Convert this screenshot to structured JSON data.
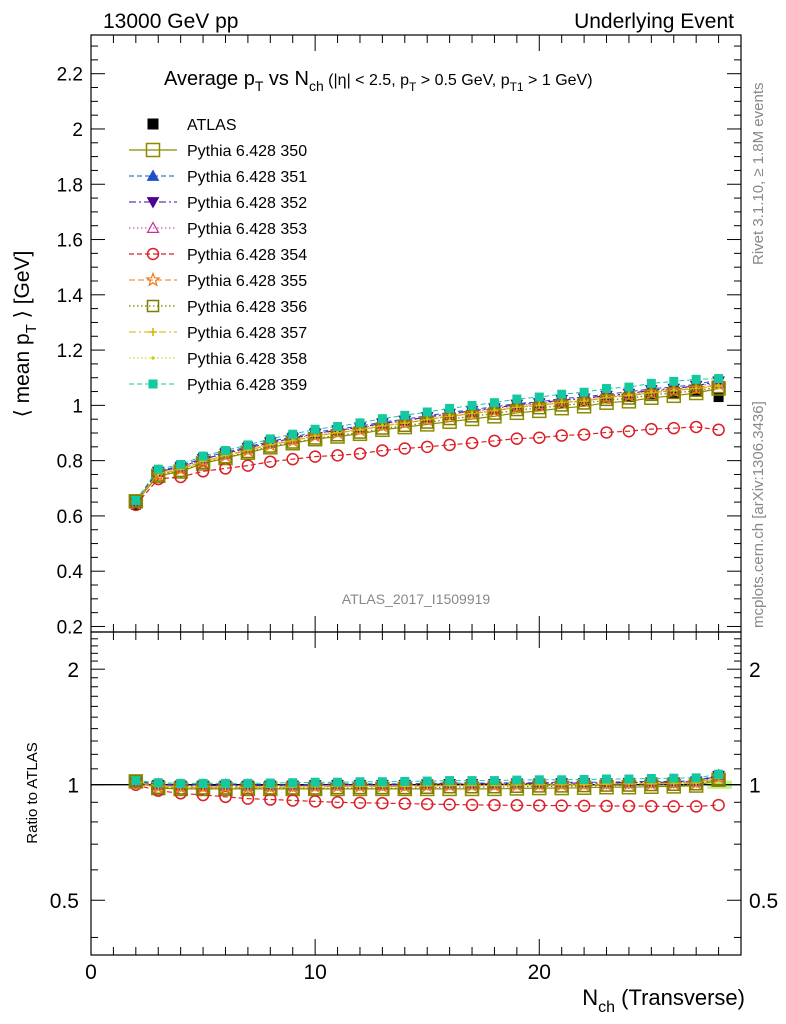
{
  "header": {
    "left": "13000 GeV pp",
    "right": "Underlying Event"
  },
  "side_labels": {
    "rivet": "Rivet 3.1.10, ≥ 1.8M events",
    "mcplots": "mcplots.cern.ch [arXiv:1306.3436]"
  },
  "watermark": "ATLAS_2017_I1509919",
  "colors": {
    "ATLAS": "#000000",
    "s350": "#8b8b00",
    "s351": "#1e50c8",
    "s352": "#4b0096",
    "s353": "#c83296",
    "s354": "#dc1e28",
    "s355": "#f07814",
    "s356": "#7d7d00",
    "s357": "#d2b400",
    "s358": "#c8c800",
    "s359": "#14c8a0"
  },
  "chart_data": {
    "type": "line",
    "title": {
      "main": "Average p",
      "sub_T": "T",
      "vs": " vs N",
      "sub_ch": "ch",
      "cuts": [
        " (|η| < 2.5, p",
        "T",
        " > 0.5 GeV, p",
        "T1",
        " > 1 GeV)"
      ]
    },
    "ylabel": {
      "main": "⟨ mean p",
      "sub": "T",
      "end": " ⟩ [GeV]"
    },
    "ratio_ylabel": "Ratio to ATLAS",
    "xlabel": {
      "main": "N",
      "sub": "ch",
      "end": " (Transverse)"
    },
    "xlim": [
      0,
      29
    ],
    "ylim": [
      0.18,
      2.34
    ],
    "ratio_ylim": [
      0.36,
      2.5
    ],
    "ratio_scale": "log",
    "x_ticks": [
      "0",
      "10",
      "20"
    ],
    "y_ticks": [
      "0.2",
      "0.4",
      "0.6",
      "0.8",
      "1",
      "1.2",
      "1.4",
      "1.6",
      "1.8",
      "2",
      "2.2"
    ],
    "ratio_ticks": [
      "0.5",
      "1",
      "2"
    ],
    "legend_position": "top-left",
    "x": [
      2,
      3,
      4,
      5,
      6,
      7,
      8,
      9,
      10,
      11,
      12,
      13,
      14,
      15,
      16,
      17,
      18,
      19,
      20,
      21,
      22,
      23,
      24,
      25,
      26,
      27,
      28
    ],
    "data": {
      "name": "ATLAS",
      "y": [
        0.64,
        0.76,
        0.78,
        0.81,
        0.83,
        0.85,
        0.87,
        0.885,
        0.9,
        0.91,
        0.92,
        0.935,
        0.945,
        0.955,
        0.965,
        0.975,
        0.985,
        0.995,
        1.0,
        1.01,
        1.015,
        1.025,
        1.03,
        1.04,
        1.045,
        1.05,
        1.03
      ]
    },
    "series": [
      {
        "name": "Pythia 6.428 350",
        "ratio": [
          1.02,
          0.98,
          0.975,
          0.975,
          0.975,
          0.975,
          0.975,
          0.975,
          0.975,
          0.975,
          0.975,
          0.975,
          0.975,
          0.975,
          0.975,
          0.975,
          0.975,
          0.978,
          0.98,
          0.98,
          0.982,
          0.985,
          0.985,
          0.988,
          0.99,
          0.995,
          1.03
        ]
      },
      {
        "name": "Pythia 6.428 351",
        "ratio": [
          1.02,
          1.005,
          1.0,
          1.0,
          1.0,
          1.0,
          1.0,
          1.0,
          1.003,
          1.005,
          1.005,
          1.005,
          1.005,
          1.008,
          1.01,
          1.01,
          1.01,
          1.012,
          1.012,
          1.015,
          1.015,
          1.015,
          1.018,
          1.02,
          1.02,
          1.025,
          1.06
        ]
      },
      {
        "name": "Pythia 6.428 352",
        "ratio": [
          1.015,
          1.0,
          0.995,
          0.995,
          0.995,
          0.995,
          0.995,
          0.995,
          0.998,
          1.0,
          1.0,
          1.0,
          1.0,
          1.003,
          1.005,
          1.005,
          1.005,
          1.008,
          1.008,
          1.01,
          1.01,
          1.01,
          1.012,
          1.015,
          1.015,
          1.02,
          1.055
        ]
      },
      {
        "name": "Pythia 6.428 353",
        "ratio": [
          1.015,
          0.998,
          0.993,
          0.993,
          0.993,
          0.993,
          0.993,
          0.993,
          0.995,
          0.998,
          0.998,
          0.998,
          0.998,
          1.0,
          1.003,
          1.003,
          1.003,
          1.005,
          1.005,
          1.008,
          1.008,
          1.008,
          1.01,
          1.012,
          1.012,
          1.018,
          1.05
        ]
      },
      {
        "name": "Pythia 6.428 354",
        "ratio": [
          1.0,
          0.965,
          0.95,
          0.94,
          0.93,
          0.92,
          0.915,
          0.91,
          0.905,
          0.9,
          0.897,
          0.895,
          0.893,
          0.89,
          0.888,
          0.886,
          0.885,
          0.884,
          0.883,
          0.882,
          0.881,
          0.88,
          0.88,
          0.879,
          0.878,
          0.878,
          0.885
        ]
      },
      {
        "name": "Pythia 6.428 355",
        "ratio": [
          1.01,
          0.985,
          0.985,
          0.985,
          0.985,
          0.985,
          0.985,
          0.985,
          0.988,
          0.99,
          0.99,
          0.99,
          0.99,
          0.993,
          0.995,
          0.995,
          0.995,
          0.998,
          1.0,
          1.0,
          1.0,
          1.003,
          1.005,
          1.005,
          1.008,
          1.01,
          1.045
        ]
      },
      {
        "name": "Pythia 6.428 356",
        "ratio": [
          1.02,
          0.982,
          0.978,
          0.978,
          0.978,
          0.978,
          0.978,
          0.978,
          0.978,
          0.98,
          0.98,
          0.98,
          0.98,
          0.982,
          0.985,
          0.985,
          0.985,
          0.988,
          0.99,
          0.99,
          0.992,
          0.995,
          0.995,
          0.998,
          1.0,
          1.003,
          1.035
        ]
      },
      {
        "name": "Pythia 6.428 357",
        "ratio": [
          1.02,
          0.99,
          0.985,
          0.985,
          0.985,
          0.985,
          0.985,
          0.985,
          0.988,
          0.99,
          0.99,
          0.99,
          0.99,
          0.993,
          0.995,
          0.995,
          0.995,
          0.998,
          1.0,
          1.0,
          1.0,
          1.003,
          1.005,
          1.005,
          1.008,
          1.01,
          1.04
        ]
      },
      {
        "name": "Pythia 6.428 358",
        "ratio": [
          1.02,
          0.992,
          0.988,
          0.988,
          0.988,
          0.988,
          0.988,
          0.988,
          0.99,
          0.992,
          0.992,
          0.992,
          0.992,
          0.995,
          0.998,
          0.998,
          0.998,
          1.0,
          1.002,
          1.002,
          1.002,
          1.005,
          1.008,
          1.008,
          1.01,
          1.012,
          1.04
        ]
      },
      {
        "name": "Pythia 6.428 359",
        "ratio": [
          1.025,
          1.012,
          1.008,
          1.008,
          1.008,
          1.008,
          1.01,
          1.012,
          1.015,
          1.015,
          1.018,
          1.018,
          1.02,
          1.022,
          1.025,
          1.025,
          1.025,
          1.028,
          1.03,
          1.03,
          1.032,
          1.035,
          1.035,
          1.038,
          1.04,
          1.042,
          1.065
        ]
      }
    ]
  }
}
